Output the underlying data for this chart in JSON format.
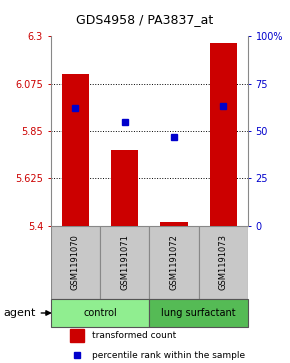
{
  "title": "GDS4958 / PA3837_at",
  "samples": [
    "GSM1191070",
    "GSM1191071",
    "GSM1191072",
    "GSM1191073"
  ],
  "bar_values": [
    6.12,
    5.76,
    5.42,
    6.27
  ],
  "percentile_values": [
    62,
    55,
    47,
    63
  ],
  "ylim_left": [
    5.4,
    6.3
  ],
  "ylim_right": [
    0,
    100
  ],
  "yticks_left": [
    5.4,
    5.625,
    5.85,
    6.075,
    6.3
  ],
  "yticks_right": [
    0,
    25,
    50,
    75,
    100
  ],
  "ytick_labels_left": [
    "5.4",
    "5.625",
    "5.85",
    "6.075",
    "6.3"
  ],
  "ytick_labels_right": [
    "0",
    "25",
    "50",
    "75",
    "100%"
  ],
  "hline_values": [
    5.625,
    5.85,
    6.075
  ],
  "bar_color": "#cc0000",
  "dot_color": "#0000cc",
  "groups": [
    {
      "label": "control",
      "indices": [
        0,
        1
      ],
      "color": "#90ee90"
    },
    {
      "label": "lung surfactant",
      "indices": [
        2,
        3
      ],
      "color": "#55bb55"
    }
  ],
  "agent_label": "agent",
  "legend_bar_label": "transformed count",
  "legend_dot_label": "percentile rank within the sample",
  "sample_box_color": "#c8c8c8",
  "sample_box_edge": "#888888",
  "plot_bg": "#ffffff",
  "bar_width": 0.55
}
